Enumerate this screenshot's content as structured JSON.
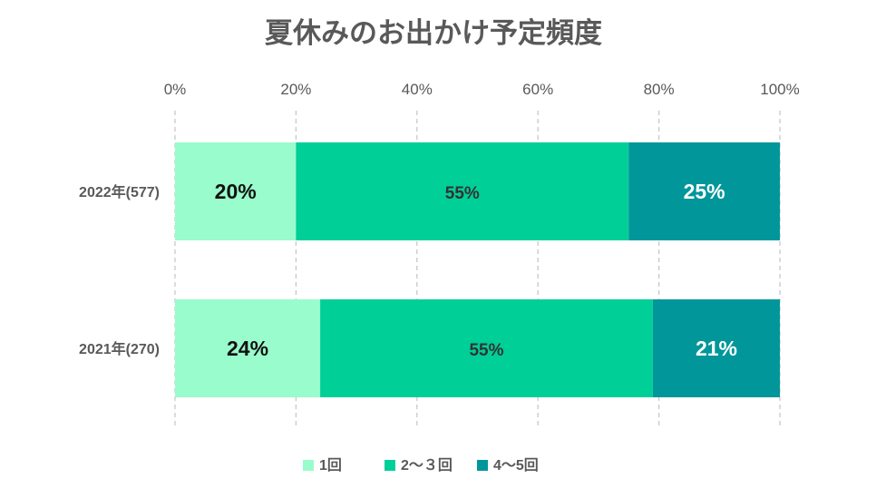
{
  "chart_data": {
    "type": "bar",
    "orientation": "horizontal",
    "stacked": "percent",
    "title": "夏休みのお出かけ予定頻度",
    "categories": [
      "2022年(577)",
      "2021年(270)"
    ],
    "series": [
      {
        "name": "1回",
        "values": [
          20,
          24
        ],
        "labels": [
          "20%",
          "24%"
        ],
        "color": "#99fccc",
        "label_color": "#111111"
      },
      {
        "name": "2〜３回",
        "values": [
          55,
          55
        ],
        "labels": [
          "55%",
          "55%"
        ],
        "color": "#00cf98",
        "label_color": "#333333"
      },
      {
        "name": "4〜5回",
        "values": [
          25,
          21
        ],
        "labels": [
          "25%",
          "21%"
        ],
        "color": "#00969a",
        "label_color": "#ffffff"
      }
    ],
    "xlim": [
      0,
      100
    ],
    "xticks": [
      0,
      20,
      40,
      60,
      80,
      100
    ],
    "xtick_labels": [
      "0%",
      "20%",
      "40%",
      "60%",
      "80%",
      "100%"
    ],
    "x_axis_position": "top",
    "grid": "vertical dashed",
    "legend_position": "bottom"
  }
}
